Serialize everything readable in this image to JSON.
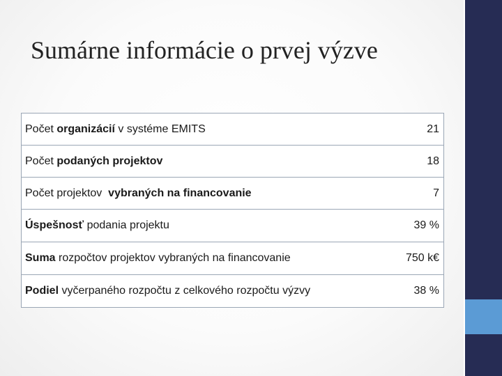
{
  "title": "Sumárne informácie o prvej výzve",
  "rows": [
    {
      "parts": [
        {
          "t": "Počet ",
          "b": false
        },
        {
          "t": "organizácií",
          "b": true
        },
        {
          "t": " v systéme EMITS",
          "b": false
        }
      ],
      "value": "21"
    },
    {
      "parts": [
        {
          "t": "Počet ",
          "b": false
        },
        {
          "t": "podaných projektov",
          "b": true
        }
      ],
      "value": "18"
    },
    {
      "parts": [
        {
          "t": "Počet projektov  ",
          "b": false
        },
        {
          "t": "vybraných na financovanie",
          "b": true
        }
      ],
      "value": "7"
    },
    {
      "parts": [
        {
          "t": "Úspešnosť",
          "b": true
        },
        {
          "t": " podania projektu",
          "b": false
        }
      ],
      "value": "39 %"
    },
    {
      "parts": [
        {
          "t": "Suma",
          "b": true
        },
        {
          "t": " rozpočtov projektov vybraných na financovanie",
          "b": false
        }
      ],
      "value": "750 k€"
    },
    {
      "parts": [
        {
          "t": "Podiel",
          "b": true
        },
        {
          "t": " vyčerpaného rozpočtu z celkového rozpočtu výzvy",
          "b": false
        }
      ],
      "value": "38 %"
    }
  ],
  "colors": {
    "sidebar": "#262c54",
    "accent": "#5b9bd5",
    "table_border": "#9aa6b5"
  }
}
